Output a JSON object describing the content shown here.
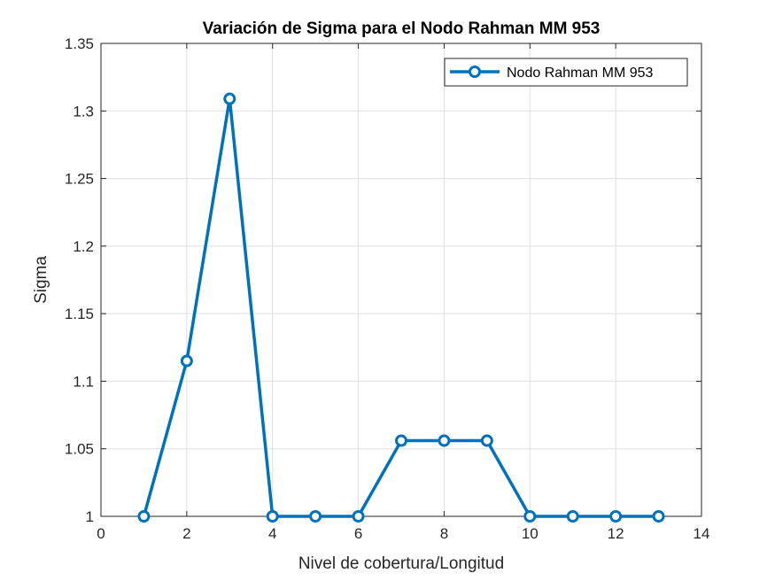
{
  "chart_data": {
    "type": "line",
    "title": "Variación de Sigma para el Nodo Rahman MM 953",
    "xlabel": "Nivel de cobertura/Longitud",
    "ylabel": "Sigma",
    "xlim": [
      0,
      14
    ],
    "ylim": [
      1,
      1.35
    ],
    "xticks": [
      0,
      2,
      4,
      6,
      8,
      10,
      12,
      14
    ],
    "xtick_labels": [
      "0",
      "2",
      "4",
      "6",
      "8",
      "10",
      "12",
      "14"
    ],
    "yticks": [
      1,
      1.05,
      1.1,
      1.15,
      1.2,
      1.25,
      1.3,
      1.35
    ],
    "ytick_labels": [
      "1",
      "1.05",
      "1.1",
      "1.15",
      "1.2",
      "1.25",
      "1.3",
      "1.35"
    ],
    "grid": true,
    "legend_position": "top-right",
    "series": [
      {
        "name": "Nodo Rahman MM 953",
        "color": "#0072BD",
        "marker": "circle",
        "x": [
          1,
          2,
          3,
          4,
          5,
          6,
          7,
          8,
          9,
          10,
          11,
          12,
          13
        ],
        "y": [
          1,
          1.115,
          1.309,
          1,
          1,
          1,
          1.056,
          1.056,
          1.056,
          1,
          1,
          1,
          1
        ]
      }
    ]
  }
}
